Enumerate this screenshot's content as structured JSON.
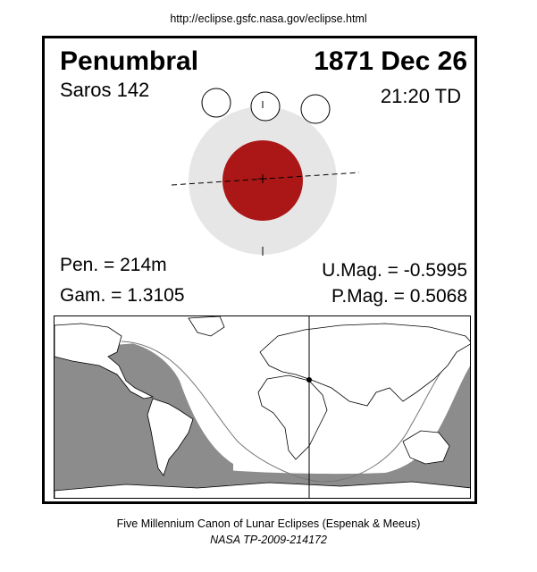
{
  "header": {
    "url": "http://eclipse.gsfc.nasa.gov/eclipse.html"
  },
  "eclipse": {
    "type": "Penumbral",
    "date": "1871 Dec 26",
    "saros": "Saros 142",
    "time": "21:20 TD",
    "pen": "Pen. = 214m",
    "gam": "Gam. = 1.3105",
    "umag": "U.Mag. = -0.5995",
    "pmag": "P.Mag. = 0.5068"
  },
  "colors": {
    "umbra": "#ab1616",
    "penumbra": "#e6e6e6",
    "night_region": "#8c8c8c",
    "land": "#ffffff"
  },
  "footer": {
    "canon": "Five Millennium Canon of Lunar Eclipses (Espenak & Meeus)",
    "publication": "NASA TP-2009-214172"
  }
}
